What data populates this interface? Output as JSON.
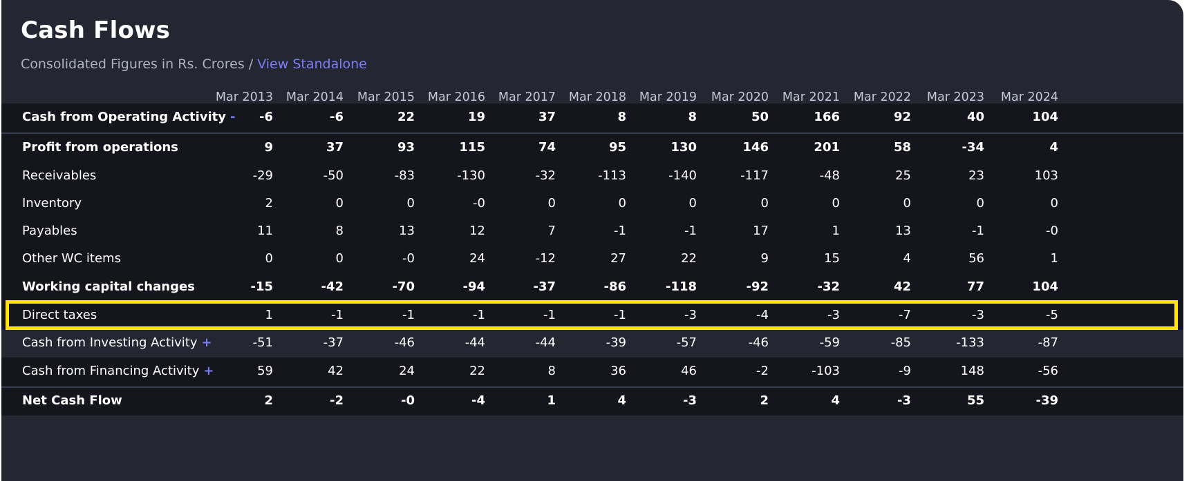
{
  "header": {
    "title": "Cash Flows",
    "subtitle_prefix": "Consolidated Figures in Rs. Crores /",
    "standalone_link": "View Standalone"
  },
  "table": {
    "columns": [
      "Mar 2013",
      "Mar 2014",
      "Mar 2015",
      "Mar 2016",
      "Mar 2017",
      "Mar 2018",
      "Mar 2019",
      "Mar 2020",
      "Mar 2021",
      "Mar 2022",
      "Mar 2023",
      "Mar 2024"
    ],
    "rows": [
      {
        "label": "Cash from Operating Activity",
        "toggle": "-",
        "values": [
          "-6",
          "-6",
          "22",
          "19",
          "37",
          "8",
          "8",
          "50",
          "166",
          "92",
          "40",
          "104"
        ]
      },
      {
        "label": "Profit from operations",
        "values": [
          "9",
          "37",
          "93",
          "115",
          "74",
          "95",
          "130",
          "146",
          "201",
          "58",
          "-34",
          "4"
        ]
      },
      {
        "label": "Receivables",
        "values": [
          "-29",
          "-50",
          "-83",
          "-130",
          "-32",
          "-113",
          "-140",
          "-117",
          "-48",
          "25",
          "23",
          "103"
        ]
      },
      {
        "label": "Inventory",
        "values": [
          "2",
          "0",
          "0",
          "-0",
          "0",
          "0",
          "0",
          "0",
          "0",
          "0",
          "0",
          "0"
        ]
      },
      {
        "label": "Payables",
        "values": [
          "11",
          "8",
          "13",
          "12",
          "7",
          "-1",
          "-1",
          "17",
          "1",
          "13",
          "-1",
          "-0"
        ]
      },
      {
        "label": "Other WC items",
        "values": [
          "0",
          "0",
          "-0",
          "24",
          "-12",
          "27",
          "22",
          "9",
          "15",
          "4",
          "56",
          "1"
        ]
      },
      {
        "label": "Working capital changes",
        "values": [
          "-15",
          "-42",
          "-70",
          "-94",
          "-37",
          "-86",
          "-118",
          "-92",
          "-32",
          "42",
          "77",
          "104"
        ]
      },
      {
        "label": "Direct taxes",
        "values": [
          "1",
          "-1",
          "-1",
          "-1",
          "-1",
          "-1",
          "-3",
          "-4",
          "-3",
          "-7",
          "-3",
          "-5"
        ]
      },
      {
        "label": "Cash from Investing Activity",
        "toggle": "+",
        "values": [
          "-51",
          "-37",
          "-46",
          "-44",
          "-44",
          "-39",
          "-57",
          "-46",
          "-59",
          "-85",
          "-133",
          "-87"
        ]
      },
      {
        "label": "Cash from Financing Activity",
        "toggle": "+",
        "values": [
          "59",
          "42",
          "24",
          "22",
          "8",
          "36",
          "46",
          "-2",
          "-103",
          "-9",
          "148",
          "-56"
        ]
      },
      {
        "label": "Net Cash Flow",
        "values": [
          "2",
          "-2",
          "-0",
          "-4",
          "1",
          "4",
          "-3",
          "2",
          "4",
          "-3",
          "55",
          "-39"
        ]
      }
    ]
  },
  "colors": {
    "card_background": "#242631",
    "row_dark": "#14151d",
    "accent": "#7b7ff6",
    "highlight": "#ffe500"
  }
}
